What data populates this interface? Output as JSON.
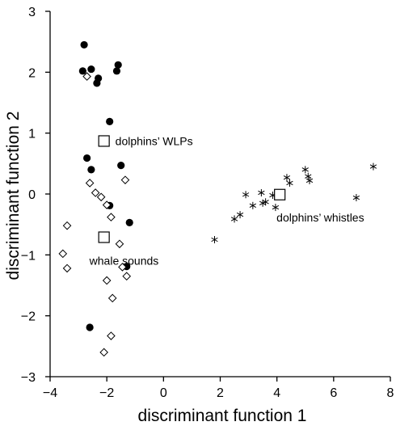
{
  "chart_data": {
    "type": "scatter",
    "xlabel": "discriminant function 1",
    "ylabel": "discriminant function 2",
    "xlim": [
      -4,
      8
    ],
    "ylim": [
      -3,
      3
    ],
    "xticks": [
      -4,
      -2,
      0,
      2,
      4,
      6,
      8
    ],
    "yticks": [
      -3,
      -2,
      -1,
      0,
      1,
      2,
      3
    ],
    "grid": false,
    "legend": "none",
    "series": [
      {
        "marker": "filled-circle",
        "color": "#000000",
        "points": [
          [
            -2.8,
            2.45
          ],
          [
            -2.85,
            2.02
          ],
          [
            -2.55,
            2.05
          ],
          [
            -2.35,
            1.82
          ],
          [
            -2.3,
            1.9
          ],
          [
            -1.6,
            2.12
          ],
          [
            -1.65,
            2.02
          ],
          [
            -1.9,
            1.19
          ],
          [
            -2.7,
            0.59
          ],
          [
            -2.55,
            0.4
          ],
          [
            -1.5,
            0.47
          ],
          [
            -1.9,
            -0.19
          ],
          [
            -1.2,
            -0.47
          ],
          [
            -1.3,
            -1.19
          ],
          [
            -2.6,
            -2.19
          ]
        ]
      },
      {
        "marker": "open-diamond",
        "color": "#000000",
        "points": [
          [
            -2.7,
            1.93
          ],
          [
            -2.6,
            0.18
          ],
          [
            -2.4,
            0.02
          ],
          [
            -2.2,
            -0.05
          ],
          [
            -1.35,
            0.23
          ],
          [
            -2.0,
            -0.18
          ],
          [
            -1.85,
            -0.38
          ],
          [
            -3.4,
            -0.52
          ],
          [
            -2.05,
            -0.7
          ],
          [
            -1.55,
            -0.82
          ],
          [
            -3.55,
            -0.98
          ],
          [
            -3.4,
            -1.22
          ],
          [
            -1.45,
            -1.2
          ],
          [
            -1.3,
            -1.35
          ],
          [
            -2.0,
            -1.42
          ],
          [
            -1.8,
            -1.71
          ],
          [
            -1.85,
            -2.33
          ],
          [
            -2.1,
            -2.6
          ]
        ]
      },
      {
        "marker": "asterisk",
        "color": "#000000",
        "points": [
          [
            1.8,
            -0.75
          ],
          [
            2.5,
            -0.41
          ],
          [
            2.7,
            -0.34
          ],
          [
            2.9,
            -0.01
          ],
          [
            3.15,
            -0.19
          ],
          [
            3.45,
            0.02
          ],
          [
            3.5,
            -0.15
          ],
          [
            3.6,
            -0.13
          ],
          [
            3.85,
            -0.02
          ],
          [
            3.95,
            -0.22
          ],
          [
            4.35,
            0.27
          ],
          [
            4.45,
            0.18
          ],
          [
            5.0,
            0.4
          ],
          [
            5.1,
            0.29
          ],
          [
            5.15,
            0.22
          ],
          [
            6.8,
            -0.06
          ],
          [
            7.4,
            0.45
          ]
        ]
      }
    ],
    "centroids": [
      {
        "label": "dolphins’ WLPs",
        "x": -2.1,
        "y": 0.87,
        "label_side": "right"
      },
      {
        "label": "whale sounds",
        "x": -2.1,
        "y": -0.71,
        "label_side": "below"
      },
      {
        "label": "dolphins’ whistles",
        "x": 4.1,
        "y": -0.01,
        "label_side": "below"
      }
    ]
  }
}
